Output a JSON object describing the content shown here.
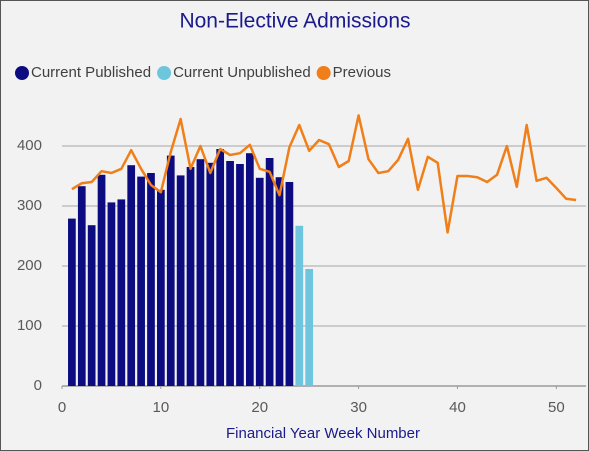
{
  "chart_data": {
    "type": "bar_line",
    "title": "Non-Elective Admissions",
    "x_label": "Financial Year Week Number",
    "xlim": [
      0,
      53
    ],
    "xticks": [
      0,
      10,
      20,
      30,
      40,
      50
    ],
    "ylim": [
      0,
      480
    ],
    "yticks": [
      0,
      100,
      200,
      300,
      400
    ],
    "grid": true,
    "legend": "top-left",
    "series": [
      {
        "name": "Current Published",
        "color": "#0c0c80",
        "kind": "bar",
        "x": [
          1,
          2,
          3,
          4,
          5,
          6,
          7,
          8,
          9,
          10,
          11,
          12,
          13,
          14,
          15,
          16,
          17,
          18,
          19,
          20,
          21,
          22,
          23
        ],
        "values": [
          279,
          333,
          268,
          352,
          306,
          311,
          368,
          349,
          355,
          327,
          384,
          351,
          365,
          378,
          372,
          395,
          375,
          370,
          388,
          347,
          380,
          348,
          340
        ]
      },
      {
        "name": "Current Unpublished",
        "color": "#6ec6de",
        "kind": "bar",
        "x": [
          24,
          25
        ],
        "values": [
          267,
          195
        ]
      },
      {
        "name": "Previous",
        "color": "#f07f19",
        "kind": "line",
        "x": [
          1,
          2,
          3,
          4,
          5,
          6,
          7,
          8,
          9,
          10,
          11,
          12,
          13,
          14,
          15,
          16,
          17,
          18,
          19,
          20,
          21,
          22,
          23,
          24,
          25,
          26,
          27,
          28,
          29,
          30,
          31,
          32,
          33,
          34,
          35,
          36,
          37,
          38,
          39,
          40,
          41,
          42,
          43,
          44,
          45,
          46,
          47,
          48,
          49,
          50,
          51,
          52
        ],
        "values": [
          328,
          338,
          340,
          358,
          355,
          362,
          393,
          362,
          335,
          323,
          390,
          445,
          362,
          400,
          355,
          395,
          385,
          388,
          402,
          362,
          357,
          318,
          398,
          435,
          392,
          410,
          403,
          365,
          375,
          451,
          378,
          355,
          358,
          377,
          412,
          327,
          382,
          372,
          256,
          350,
          350,
          348,
          340,
          352,
          400,
          332,
          435,
          342,
          347,
          330,
          312,
          310
        ]
      }
    ]
  }
}
